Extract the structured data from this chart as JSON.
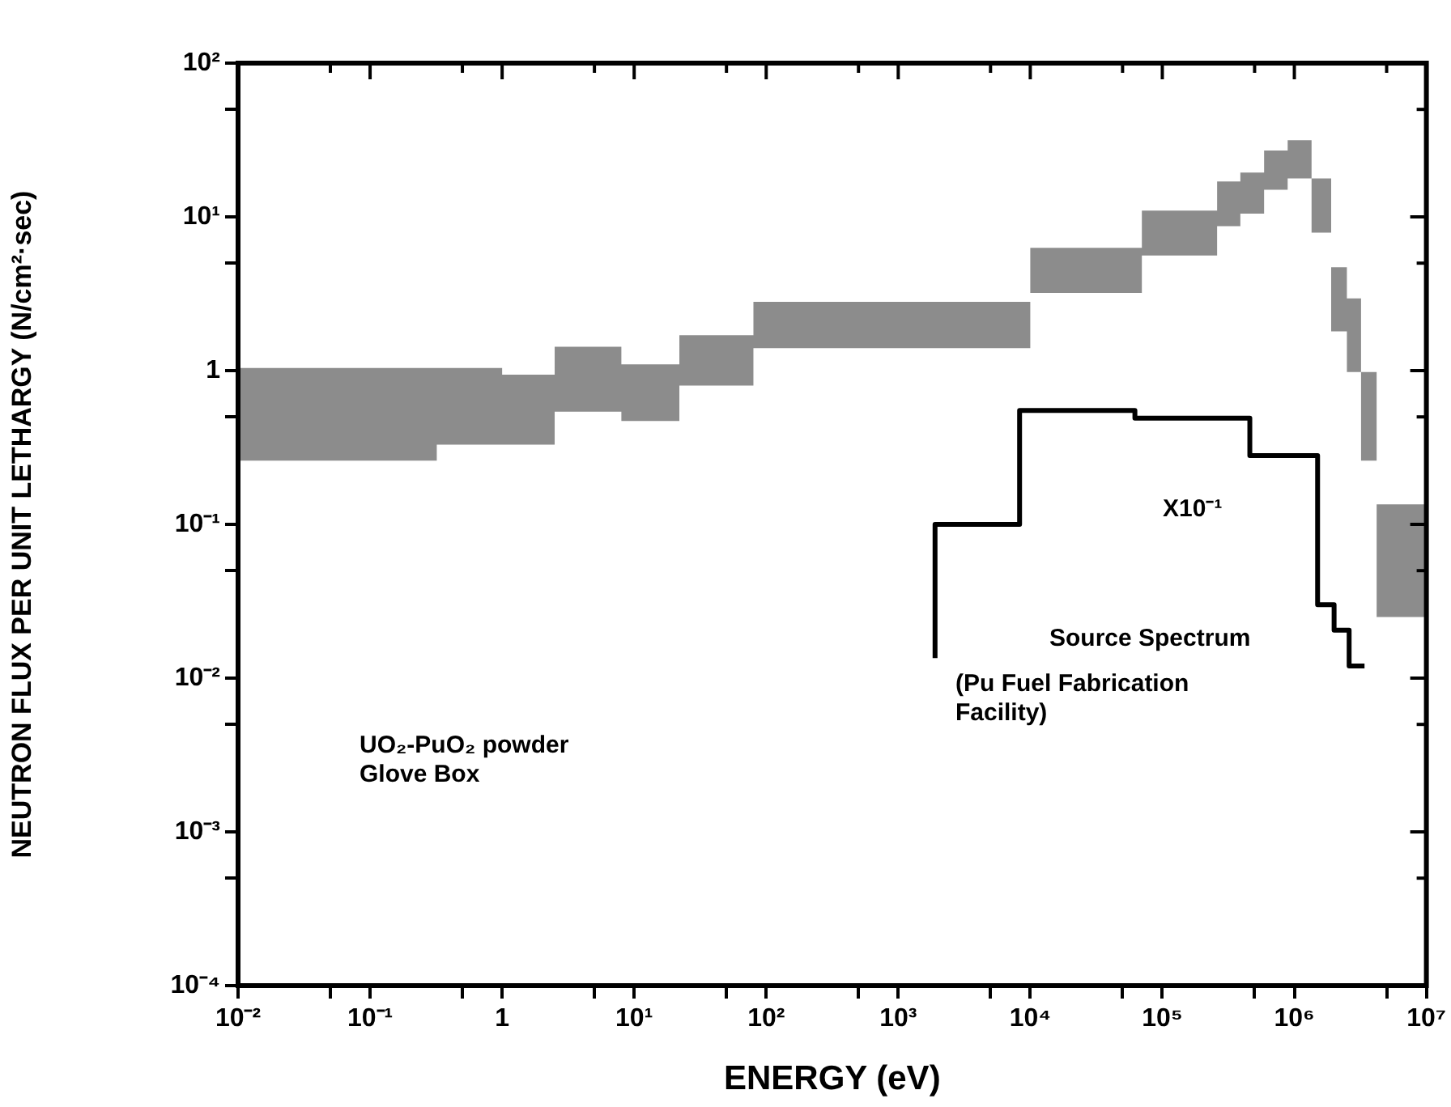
{
  "chart_data": {
    "type": "step",
    "xlabel": "ENERGY (eV)",
    "ylabel": "NEUTRON FLUX PER UNIT LETHARGY (N/cm²·sec)",
    "log": "xy",
    "xlim": [
      0.01,
      10000000
    ],
    "ylim": [
      0.0001,
      100
    ],
    "xticks": [
      {
        "value": 0.01,
        "label": "10⁻²"
      },
      {
        "value": 0.05,
        "label": null
      },
      {
        "value": 0.1,
        "label": "10⁻¹"
      },
      {
        "value": 0.5,
        "label": null
      },
      {
        "value": 1,
        "label": "1"
      },
      {
        "value": 5,
        "label": null
      },
      {
        "value": 10,
        "label": "10¹"
      },
      {
        "value": 50,
        "label": null
      },
      {
        "value": 100,
        "label": "10²"
      },
      {
        "value": 500,
        "label": null
      },
      {
        "value": 1000,
        "label": "10³"
      },
      {
        "value": 5000,
        "label": null
      },
      {
        "value": 10000,
        "label": "10⁴"
      },
      {
        "value": 50000,
        "label": null
      },
      {
        "value": 100000,
        "label": "10⁵"
      },
      {
        "value": 500000,
        "label": null
      },
      {
        "value": 1000000,
        "label": "10⁶"
      },
      {
        "value": 5000000,
        "label": null
      },
      {
        "value": 10000000,
        "label": "10⁷"
      }
    ],
    "yticks": [
      {
        "value": 0.0001,
        "label": "10⁻⁴"
      },
      {
        "value": 0.0005,
        "label": null
      },
      {
        "value": 0.001,
        "label": "10⁻³"
      },
      {
        "value": 0.005,
        "label": null
      },
      {
        "value": 0.01,
        "label": "10⁻²"
      },
      {
        "value": 0.05,
        "label": null
      },
      {
        "value": 0.1,
        "label": "10⁻¹"
      },
      {
        "value": 0.5,
        "label": null
      },
      {
        "value": 1,
        "label": "1"
      },
      {
        "value": 5,
        "label": null
      },
      {
        "value": 10,
        "label": "10¹"
      },
      {
        "value": 50,
        "label": null
      },
      {
        "value": 100,
        "label": "10²"
      }
    ],
    "grid": false,
    "legend": false,
    "marker": "none",
    "line_style": "solid",
    "series": [
      {
        "color": "#000000",
        "x": [
          0.01,
          0.32,
          1,
          2.5,
          8,
          22,
          80,
          10000,
          70000,
          260000,
          390000,
          590000,
          890000,
          1350000,
          1900000,
          2500000,
          3200000,
          4200000,
          6000000,
          10000000
        ],
        "values": [
          null,
          null,
          null,
          null,
          null,
          null,
          null,
          null,
          null,
          null,
          null,
          null,
          null,
          null,
          null,
          null,
          null,
          null,
          null,
          null
        ],
        "upper": [
          0.36,
          1.04,
          1.04,
          0.94,
          1.43,
          1.1,
          1.7,
          2.8,
          6.3,
          11,
          17,
          19.4,
          27,
          31.5,
          17.8,
          4.7,
          2.95,
          0.98,
          0.135,
          0.135
        ],
        "lower": [
          0.28,
          0.26,
          0.33,
          0.33,
          0.54,
          0.47,
          0.8,
          1.4,
          3.2,
          5.6,
          8.7,
          10.5,
          15,
          17.8,
          7.9,
          1.8,
          0.98,
          0.26,
          0.025,
          0.025
        ]
      },
      {
        "name": "Source Spectrum",
        "color": "#000000",
        "x": [
          1900,
          1900,
          8300,
          62000,
          460000,
          1500000,
          2000000,
          2600000,
          3400000
        ],
        "values": [
          0.0135,
          0.0195,
          0.1,
          0.55,
          0.49,
          0.28,
          0.03,
          0.0205,
          0.012
        ]
      }
    ],
    "annotations": [
      "UO₂-PuO₂ powder Glove Box",
      "X10⁻¹",
      "(Pu Fuel Fabrication Facility)"
    ]
  }
}
